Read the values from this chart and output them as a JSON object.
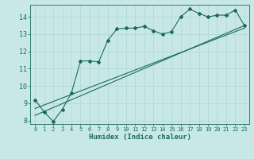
{
  "title": "",
  "xlabel": "Humidex (Indice chaleur)",
  "ylabel": "",
  "background_color": "#c8e8e8",
  "grid_color": "#b0d4d4",
  "line_color": "#1a6b5a",
  "xlim": [
    -0.5,
    23.5
  ],
  "ylim": [
    7.8,
    14.7
  ],
  "yticks": [
    8,
    9,
    10,
    11,
    12,
    13,
    14
  ],
  "xticks": [
    0,
    1,
    2,
    3,
    4,
    5,
    6,
    7,
    8,
    9,
    10,
    11,
    12,
    13,
    14,
    15,
    16,
    17,
    18,
    19,
    20,
    21,
    22,
    23
  ],
  "line1_x": [
    0,
    1,
    2,
    3,
    4,
    5,
    6,
    7,
    8,
    9,
    10,
    11,
    12,
    13,
    14,
    15,
    16,
    17,
    18,
    19,
    20,
    21,
    22,
    23
  ],
  "line1_y": [
    9.2,
    8.5,
    7.95,
    8.65,
    9.6,
    11.45,
    11.45,
    11.4,
    12.65,
    13.3,
    13.35,
    13.35,
    13.45,
    13.2,
    13.0,
    13.15,
    14.0,
    14.45,
    14.2,
    14.0,
    14.1,
    14.1,
    14.4,
    13.5
  ],
  "line2_x": [
    0,
    23
  ],
  "line2_y": [
    8.3,
    13.5
  ],
  "line3_x": [
    0,
    23
  ],
  "line3_y": [
    8.7,
    13.35
  ]
}
